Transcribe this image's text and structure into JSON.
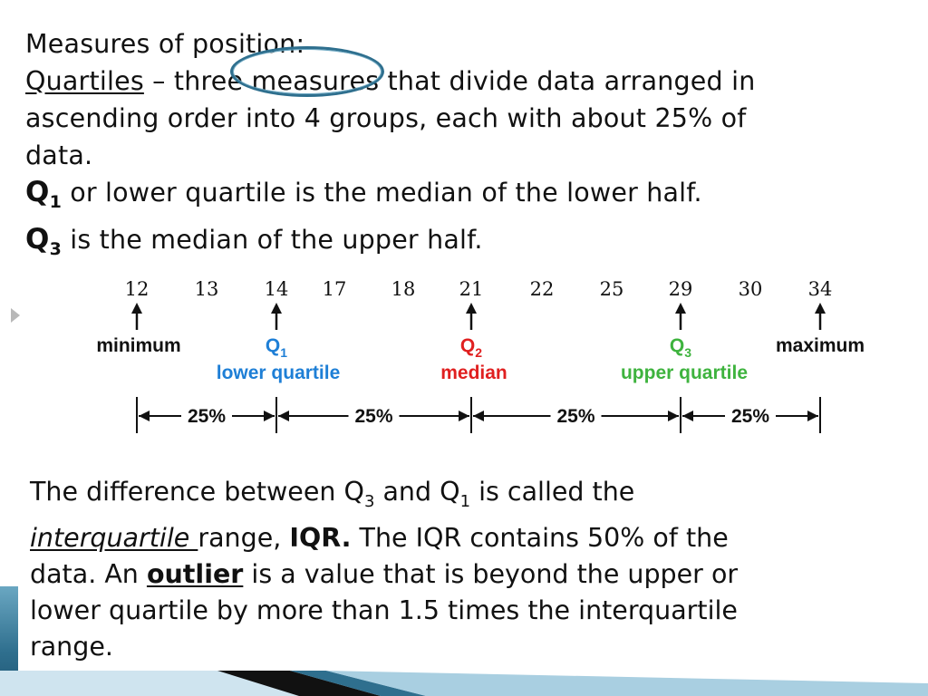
{
  "intro": {
    "title": "Measures of position:",
    "quartiles_term": "Quartiles",
    "quartiles_def_1": " – three measures that divide data arranged in",
    "quartiles_def_2": "ascending order into 4 groups, each with about 25% of",
    "quartiles_def_3": "data.",
    "q1_symbol": "Q",
    "q1_sub": "1",
    "q1_text": " or lower quartile is the median of the lower half.",
    "q3_symbol": "Q",
    "q3_sub": "3",
    "q3_text": " is the median of the upper half."
  },
  "diagram": {
    "data_values": [
      "12",
      "13",
      "14",
      "17",
      "18",
      "21",
      "22",
      "25",
      "29",
      "30",
      "34"
    ],
    "labels": {
      "minimum": "minimum",
      "maximum": "maximum",
      "q1_symbol": "Q",
      "q1_sub": "1",
      "q1_name": "lower quartile",
      "q2_symbol": "Q",
      "q2_sub": "2",
      "q2_name": "median",
      "q3_symbol": "Q",
      "q3_sub": "3",
      "q3_name": "upper quartile"
    },
    "segments": [
      "25%",
      "25%",
      "25%",
      "25%"
    ],
    "colors": {
      "q1": "#1e7fd6",
      "q2": "#e02020",
      "q3": "#3eb33e",
      "arrow": "#111111"
    }
  },
  "explanation": {
    "line1_a": "The difference between Q",
    "line1_sub3": "3",
    "line1_b": " and Q",
    "line1_sub1": "1",
    "line1_c": " is called the",
    "line2_term": "interquartile ",
    "line2_a": "range, ",
    "line2_iqr": "IQR.",
    "line2_b": "  The IQR contains 50% of the",
    "line3_a": "data. An ",
    "line3_outlier": "outlier",
    "line3_b": " is a value that is beyond the upper or",
    "line4": "lower quartile by more than 1.5 times the interquartile",
    "line5": "range."
  }
}
